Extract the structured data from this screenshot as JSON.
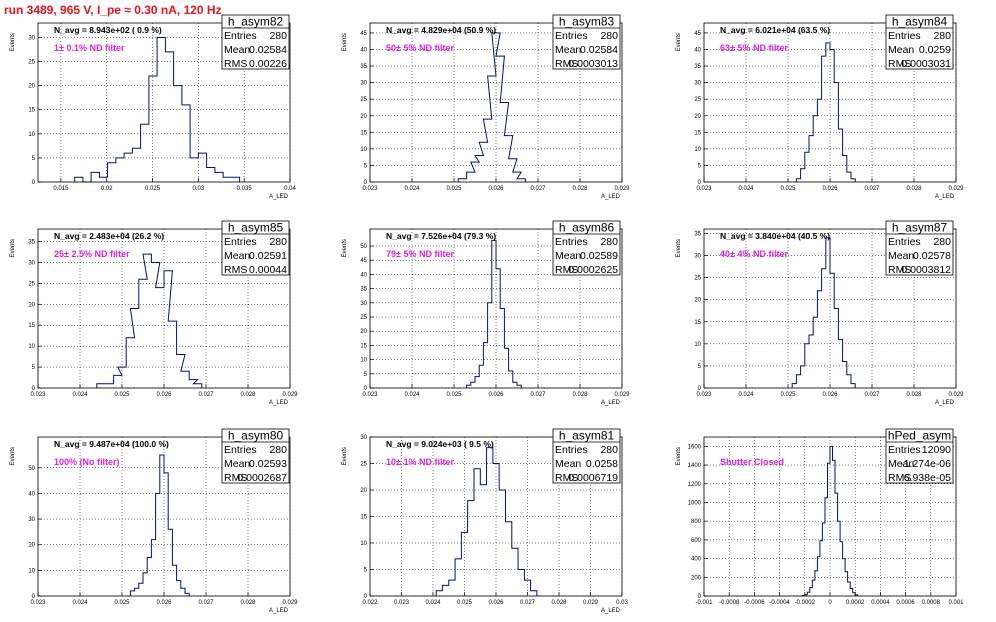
{
  "header": {
    "title": "run 3489,   965 V, I_pe ≈ 0.30 nA, 120 Hz"
  },
  "chart_data": [
    {
      "type": "histogram",
      "name": "h_asym82",
      "xlabel": "A_LED",
      "ylabel": "Events",
      "xlim": [
        0.0125,
        0.04
      ],
      "ylim": [
        0,
        33
      ],
      "xticks": [
        "0.015",
        "0.02",
        "0.025",
        "0.03",
        "0.035",
        "0.04"
      ],
      "yticks": [
        "0",
        "5",
        "10",
        "15",
        "20",
        "25",
        "30"
      ],
      "n_avg": "N_avg = 8.943e+02 ( 0.9 %)",
      "filter": "1± 0.1% ND filter",
      "stats": {
        "Entries": "280",
        "Mean": "0.02584",
        "RMS": "0.00226"
      },
      "bins": [
        [
          0.0165,
          1
        ],
        [
          0.0174,
          0
        ],
        [
          0.0183,
          2
        ],
        [
          0.0192,
          1
        ],
        [
          0.0201,
          4
        ],
        [
          0.021,
          5
        ],
        [
          0.0219,
          6
        ],
        [
          0.0228,
          7
        ],
        [
          0.0237,
          12
        ],
        [
          0.0246,
          22
        ],
        [
          0.0255,
          30
        ],
        [
          0.0264,
          27
        ],
        [
          0.0273,
          20
        ],
        [
          0.0282,
          16
        ],
        [
          0.0291,
          5
        ],
        [
          0.03,
          6
        ],
        [
          0.0309,
          3
        ],
        [
          0.0318,
          2
        ],
        [
          0.0327,
          1
        ],
        [
          0.0336,
          1
        ]
      ]
    },
    {
      "type": "histogram",
      "name": "h_asym83",
      "xlabel": "A_LED",
      "ylabel": "Events",
      "xlim": [
        0.023,
        0.029
      ],
      "ylim": [
        0,
        48
      ],
      "xticks": [
        "0.023",
        "0.024",
        "0.025",
        "0.026",
        "0.027",
        "0.028",
        "0.029"
      ],
      "yticks": [
        "0",
        "5",
        "10",
        "15",
        "20",
        "25",
        "30",
        "35",
        "40",
        "45"
      ],
      "n_avg": "N_avg = 4.829e+04 (50.9 %)",
      "filter": "50± 5% ND filter",
      "stats": {
        "Entries": "280",
        "Mean": "0.02584",
        "RMS": "0.0003013"
      },
      "bins": [
        [
          0.0251,
          1
        ],
        [
          0.0253,
          3
        ],
        [
          0.0254,
          6
        ],
        [
          0.0255,
          8
        ],
        [
          0.0256,
          12
        ],
        [
          0.0257,
          19
        ],
        [
          0.0258,
          32
        ],
        [
          0.0259,
          45
        ],
        [
          0.026,
          38
        ],
        [
          0.0261,
          24
        ],
        [
          0.0262,
          14
        ],
        [
          0.0263,
          7
        ],
        [
          0.0264,
          3
        ],
        [
          0.0265,
          1
        ]
      ]
    },
    {
      "type": "histogram",
      "name": "h_asym84",
      "xlabel": "A_LED",
      "ylabel": "Events",
      "xlim": [
        0.023,
        0.029
      ],
      "ylim": [
        0,
        48
      ],
      "xticks": [
        "0.023",
        "0.024",
        "0.025",
        "0.026",
        "0.027",
        "0.028",
        "0.029"
      ],
      "yticks": [
        "0",
        "5",
        "10",
        "15",
        "20",
        "25",
        "30",
        "35",
        "40",
        "45"
      ],
      "n_avg": "N_avg = 6.021e+04 (63.5 %)",
      "filter": "63± 5% ND filter",
      "stats": {
        "Entries": "280",
        "Mean": "0.0259",
        "RMS": "0.0003031"
      },
      "bins": [
        [
          0.0252,
          1
        ],
        [
          0.0253,
          4
        ],
        [
          0.0254,
          9
        ],
        [
          0.0255,
          14
        ],
        [
          0.0256,
          20
        ],
        [
          0.0257,
          25
        ],
        [
          0.0258,
          38
        ],
        [
          0.0259,
          42
        ],
        [
          0.026,
          40
        ],
        [
          0.0261,
          30
        ],
        [
          0.0262,
          16
        ],
        [
          0.0263,
          8
        ],
        [
          0.0264,
          3
        ],
        [
          0.0265,
          1
        ]
      ]
    },
    {
      "type": "histogram",
      "name": "h_asym85",
      "xlabel": "A_LED",
      "ylabel": "Events",
      "xlim": [
        0.023,
        0.029
      ],
      "ylim": [
        0,
        38
      ],
      "xticks": [
        "0.023",
        "0.024",
        "0.025",
        "0.026",
        "0.027",
        "0.028",
        "0.029"
      ],
      "yticks": [
        "0",
        "5",
        "10",
        "15",
        "20",
        "25",
        "30",
        "35"
      ],
      "n_avg": "N_avg = 2.483e+04 (26.2 %)",
      "filter": "25± 2.5% ND filter",
      "stats": {
        "Entries": "280",
        "Mean": "0.02591",
        "RMS": "0.00044"
      },
      "bins": [
        [
          0.0244,
          1
        ],
        [
          0.0246,
          1
        ],
        [
          0.0248,
          3
        ],
        [
          0.0249,
          5
        ],
        [
          0.0251,
          12
        ],
        [
          0.0252,
          19
        ],
        [
          0.0254,
          26
        ],
        [
          0.0255,
          32
        ],
        [
          0.0257,
          30
        ],
        [
          0.0258,
          24
        ],
        [
          0.026,
          28
        ],
        [
          0.0261,
          16
        ],
        [
          0.0263,
          8
        ],
        [
          0.0264,
          4
        ],
        [
          0.0266,
          2
        ],
        [
          0.0267,
          1
        ]
      ]
    },
    {
      "type": "histogram",
      "name": "h_asym86",
      "xlabel": "A_LED",
      "ylabel": "Events",
      "xlim": [
        0.023,
        0.029
      ],
      "ylim": [
        0,
        56
      ],
      "xticks": [
        "0.023",
        "0.024",
        "0.025",
        "0.026",
        "0.027",
        "0.028",
        "0.029"
      ],
      "yticks": [
        "0",
        "5",
        "10",
        "15",
        "20",
        "25",
        "30",
        "35",
        "40",
        "45",
        "50"
      ],
      "n_avg": "N_avg = 7.526e+04 (79.3 %)",
      "filter": "79± 5% ND filter",
      "stats": {
        "Entries": "280",
        "Mean": "0.02589",
        "RMS": "0.0002625"
      },
      "bins": [
        [
          0.0253,
          1
        ],
        [
          0.0254,
          2
        ],
        [
          0.0255,
          4
        ],
        [
          0.0256,
          8
        ],
        [
          0.0257,
          16
        ],
        [
          0.0258,
          30
        ],
        [
          0.0259,
          52
        ],
        [
          0.026,
          42
        ],
        [
          0.0261,
          28
        ],
        [
          0.0262,
          14
        ],
        [
          0.0263,
          6
        ],
        [
          0.0264,
          2
        ],
        [
          0.0265,
          1
        ]
      ]
    },
    {
      "type": "histogram",
      "name": "h_asym87",
      "xlabel": "A_LED",
      "ylabel": "Events",
      "xlim": [
        0.023,
        0.029
      ],
      "ylim": [
        0,
        36
      ],
      "xticks": [
        "0.023",
        "0.024",
        "0.025",
        "0.026",
        "0.027",
        "0.028",
        "0.029"
      ],
      "yticks": [
        "0",
        "5",
        "10",
        "15",
        "20",
        "25",
        "30",
        "35"
      ],
      "n_avg": "N_avg = 3.840e+04 (40.5 %)",
      "filter": "40± 4% ND filter",
      "stats": {
        "Entries": "280",
        "Mean": "0.02578",
        "RMS": "0.0003812"
      },
      "bins": [
        [
          0.0251,
          1
        ],
        [
          0.0252,
          3
        ],
        [
          0.0253,
          5
        ],
        [
          0.0254,
          10
        ],
        [
          0.0255,
          12
        ],
        [
          0.0256,
          16
        ],
        [
          0.0257,
          22
        ],
        [
          0.0258,
          27
        ],
        [
          0.0259,
          34
        ],
        [
          0.026,
          26
        ],
        [
          0.0261,
          18
        ],
        [
          0.0262,
          11
        ],
        [
          0.0263,
          6
        ],
        [
          0.0264,
          3
        ],
        [
          0.0265,
          1
        ]
      ]
    },
    {
      "type": "histogram",
      "name": "h_asym80",
      "xlabel": "A_LED",
      "ylabel": "Events",
      "xlim": [
        0.023,
        0.029
      ],
      "ylim": [
        0,
        62
      ],
      "xticks": [
        "0.023",
        "0.024",
        "0.025",
        "0.026",
        "0.027",
        "0.028",
        "0.029"
      ],
      "yticks": [
        "0",
        "10",
        "20",
        "30",
        "40",
        "50"
      ],
      "n_avg": "N_avg = 9.487e+04 (100.0 %)",
      "filter": "100% (No filter)",
      "stats": {
        "Entries": "280",
        "Mean": "0.02593",
        "RMS": "0.0002687"
      },
      "bins": [
        [
          0.0252,
          2
        ],
        [
          0.0253,
          3
        ],
        [
          0.0254,
          5
        ],
        [
          0.0255,
          9
        ],
        [
          0.0256,
          15
        ],
        [
          0.0257,
          22
        ],
        [
          0.0258,
          40
        ],
        [
          0.0259,
          55
        ],
        [
          0.026,
          48
        ],
        [
          0.0261,
          26
        ],
        [
          0.0262,
          12
        ],
        [
          0.0263,
          6
        ],
        [
          0.0264,
          3
        ],
        [
          0.0265,
          1
        ]
      ]
    },
    {
      "type": "histogram",
      "name": "h_asym81",
      "xlabel": "A_LED",
      "ylabel": "Events",
      "xlim": [
        0.022,
        0.03
      ],
      "ylim": [
        0,
        30
      ],
      "xticks": [
        "0.022",
        "0.023",
        "0.024",
        "0.025",
        "0.026",
        "0.027",
        "0.028",
        "0.029",
        "0.03"
      ],
      "yticks": [
        "0",
        "5",
        "10",
        "15",
        "20",
        "25",
        "30"
      ],
      "n_avg": "N_avg = 9.024e+03 ( 9.5 %)",
      "filter": "10± 1% ND filter",
      "stats": {
        "Entries": "280",
        "Mean": "0.0258",
        "RMS": "0.0006719"
      },
      "bins": [
        [
          0.0241,
          1
        ],
        [
          0.0243,
          2
        ],
        [
          0.0245,
          3
        ],
        [
          0.0247,
          7
        ],
        [
          0.0249,
          12
        ],
        [
          0.0251,
          18
        ],
        [
          0.0253,
          24
        ],
        [
          0.0255,
          21
        ],
        [
          0.0257,
          28
        ],
        [
          0.0259,
          25
        ],
        [
          0.0261,
          20
        ],
        [
          0.0263,
          14
        ],
        [
          0.0265,
          9
        ],
        [
          0.0267,
          5
        ],
        [
          0.0269,
          3
        ],
        [
          0.0271,
          1
        ]
      ]
    },
    {
      "type": "histogram",
      "name": "hPed_asym",
      "xlabel": "",
      "ylabel": "Events",
      "xlim": [
        -0.001,
        0.001
      ],
      "ylim": [
        0,
        1700
      ],
      "xticks": [
        "-0.001",
        "-0.0008",
        "-0.0006",
        "-0.0004",
        "-0.0002",
        "0",
        "0.0002",
        "0.0004",
        "0.0006",
        "0.0008",
        "0.001"
      ],
      "yticks": [
        "0",
        "200",
        "400",
        "600",
        "800",
        "1000",
        "1200",
        "1400",
        "1600"
      ],
      "n_avg": "",
      "filter": "Shutter Closed",
      "stats": {
        "Entries": "12090",
        "Mean": "-1.274e-06",
        "RMS": "6.938e-05"
      },
      "bins": [
        [
          -0.00022,
          5
        ],
        [
          -0.0002,
          15
        ],
        [
          -0.00018,
          40
        ],
        [
          -0.00016,
          90
        ],
        [
          -0.00014,
          170
        ],
        [
          -0.00012,
          270
        ],
        [
          -0.0001,
          420
        ],
        [
          -8e-05,
          590
        ],
        [
          -6e-05,
          780
        ],
        [
          -4e-05,
          1050
        ],
        [
          -2e-05,
          1420
        ],
        [
          0,
          1600
        ],
        [
          2e-05,
          1450
        ],
        [
          4e-05,
          1100
        ],
        [
          6e-05,
          800
        ],
        [
          8e-05,
          580
        ],
        [
          0.0001,
          400
        ],
        [
          0.00012,
          260
        ],
        [
          0.00014,
          150
        ],
        [
          0.00016,
          80
        ],
        [
          0.00018,
          35
        ],
        [
          0.0002,
          12
        ]
      ]
    }
  ]
}
